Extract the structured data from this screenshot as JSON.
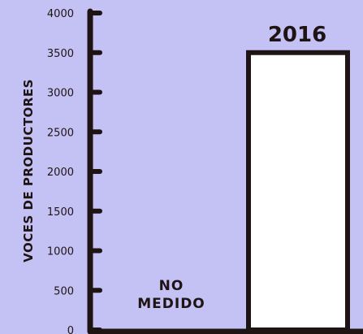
{
  "colors": {
    "background": "#c4c1f4",
    "ink": "#1f1414",
    "bar_fill": "#ffffff"
  },
  "chart_data": {
    "type": "bar",
    "ylabel": "VOCES DE PRODUCTORES",
    "ylim": [
      0,
      4000
    ],
    "yticks": [
      0,
      500,
      1000,
      1500,
      2000,
      2500,
      3000,
      3500,
      4000
    ],
    "categories": [
      "",
      "2016"
    ],
    "values": [
      null,
      3500
    ],
    "bar_labels": [
      "",
      "2016"
    ],
    "no_data_label": [
      "NO",
      "MEDIDO"
    ],
    "grid": false
  }
}
